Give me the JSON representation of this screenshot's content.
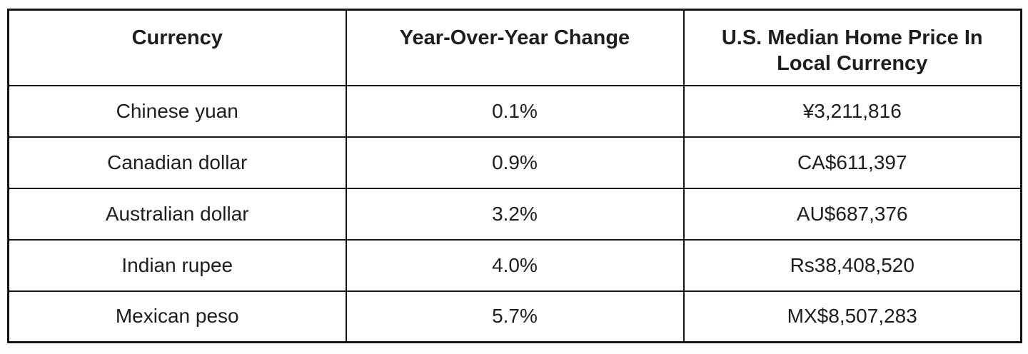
{
  "chart_data": {
    "type": "table",
    "title": "",
    "columns": [
      "Currency",
      "Year-Over-Year Change",
      "U.S. Median Home Price In Local Currency"
    ],
    "rows": [
      [
        "Chinese yuan",
        "0.1%",
        "¥3,211,816"
      ],
      [
        "Canadian dollar",
        "0.9%",
        "CA$611,397"
      ],
      [
        "Australian dollar",
        "3.2%",
        "AU$687,376"
      ],
      [
        "Indian rupee",
        "4.0%",
        "Rs38,408,520"
      ],
      [
        "Mexican peso",
        "5.7%",
        "MX$8,507,283"
      ]
    ],
    "layout": {
      "grid": "on",
      "border_color": "#141414",
      "background": "#ffffff",
      "header_bold": true,
      "num_columns": 3,
      "num_data_rows": 5
    }
  }
}
